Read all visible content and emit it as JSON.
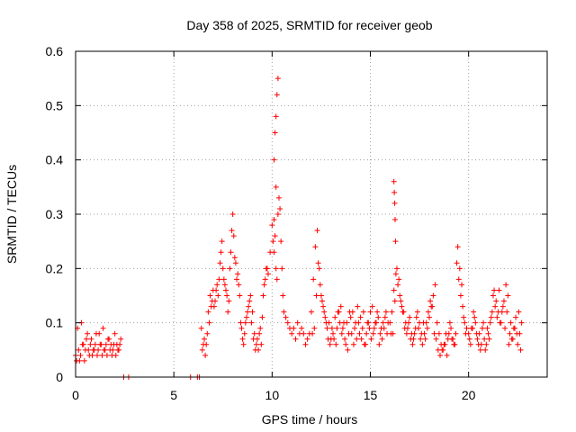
{
  "chart_data": {
    "type": "scatter",
    "title": "Day 358 of 2025, SRMTID for receiver geob",
    "xlabel": "GPS time / hours",
    "ylabel": "SRMTID / TECUs",
    "xlim": [
      0,
      24
    ],
    "ylim": [
      0,
      0.6
    ],
    "xticks": [
      0,
      5,
      10,
      15,
      20
    ],
    "xtick_labels": [
      "0",
      "5",
      "10",
      "15",
      "20"
    ],
    "yticks": [
      0,
      0.1,
      0.2,
      0.3,
      0.4,
      0.5,
      0.6
    ],
    "ytick_labels": [
      "0",
      "0.1",
      "0.2",
      "0.3",
      "0.4",
      "0.5",
      "0.6"
    ],
    "grid": true,
    "marker": "+",
    "colors": {
      "series": "#ff0000",
      "grid": "#a0a0a0",
      "axis": "#000000"
    },
    "series": [
      {
        "name": "SRMTID",
        "x": [
          0.0,
          0.1,
          0.2,
          0.3,
          0.4,
          0.5,
          0.6,
          0.7,
          0.8,
          0.9,
          1.0,
          1.1,
          1.2,
          1.3,
          1.4,
          1.5,
          1.6,
          1.7,
          1.8,
          1.9,
          2.0,
          2.1,
          2.2,
          2.3,
          0.05,
          0.15,
          0.25,
          0.35,
          0.45,
          0.55,
          0.65,
          0.75,
          0.85,
          0.95,
          1.05,
          1.15,
          1.25,
          1.35,
          1.45,
          1.55,
          1.65,
          1.75,
          1.85,
          1.95,
          2.05,
          2.15,
          2.25,
          2.45,
          2.7,
          5.85,
          6.2,
          6.3,
          6.4,
          6.5,
          6.6,
          6.7,
          6.8,
          6.9,
          7.0,
          7.1,
          7.2,
          7.3,
          7.4,
          7.5,
          7.6,
          7.7,
          7.8,
          7.9,
          8.0,
          8.1,
          8.2,
          8.3,
          8.4,
          8.5,
          8.6,
          8.7,
          8.8,
          8.9,
          9.0,
          9.1,
          9.2,
          9.3,
          9.4,
          9.5,
          9.6,
          9.7,
          9.8,
          9.9,
          6.45,
          6.55,
          6.65,
          6.75,
          6.85,
          6.95,
          7.05,
          7.15,
          7.25,
          7.35,
          7.45,
          7.55,
          7.65,
          7.75,
          7.85,
          7.95,
          8.05,
          8.15,
          8.25,
          8.35,
          8.45,
          8.55,
          8.65,
          8.75,
          8.85,
          8.95,
          9.05,
          9.15,
          9.25,
          9.35,
          9.45,
          9.55,
          9.65,
          9.75,
          10.0,
          10.05,
          10.1,
          10.15,
          10.2,
          10.25,
          10.3,
          10.35,
          10.4,
          10.45,
          10.5,
          10.55,
          10.6,
          10.7,
          10.8,
          10.9,
          11.0,
          11.1,
          11.2,
          11.3,
          11.4,
          11.5,
          11.6,
          11.7,
          11.8,
          11.9,
          10.1,
          10.15,
          10.2,
          10.25,
          10.3,
          10.2,
          10.1,
          12.0,
          12.1,
          12.2,
          12.3,
          12.4,
          12.5,
          12.6,
          12.7,
          12.8,
          12.9,
          13.0,
          13.1,
          13.2,
          13.3,
          13.4,
          13.5,
          13.6,
          13.7,
          13.8,
          13.9,
          14.0,
          14.1,
          14.2,
          14.3,
          14.4,
          14.5,
          14.6,
          14.7,
          14.8,
          14.9,
          15.0,
          15.1,
          15.2,
          15.3,
          15.4,
          15.5,
          15.6,
          15.7,
          15.8,
          15.9,
          12.05,
          12.15,
          12.25,
          12.35,
          12.45,
          12.55,
          12.65,
          12.75,
          12.85,
          12.95,
          13.05,
          13.15,
          13.25,
          13.35,
          13.45,
          13.55,
          13.65,
          13.75,
          13.85,
          13.95,
          14.05,
          14.15,
          14.25,
          14.35,
          14.45,
          14.55,
          14.65,
          14.75,
          14.85,
          14.95,
          15.05,
          15.15,
          15.25,
          15.35,
          15.45,
          15.55,
          15.65,
          15.75,
          15.85,
          16.0,
          16.1,
          16.15,
          16.2,
          16.25,
          16.3,
          16.4,
          16.5,
          16.6,
          16.7,
          16.8,
          16.9,
          17.0,
          17.1,
          17.2,
          17.3,
          17.4,
          17.5,
          17.6,
          17.7,
          17.8,
          17.9,
          18.0,
          18.1,
          18.2,
          18.3,
          18.4,
          18.5,
          18.6,
          18.7,
          18.8,
          18.9,
          19.0,
          19.1,
          19.2,
          19.3,
          19.4,
          19.5,
          19.6,
          19.7,
          19.8,
          19.9,
          16.2,
          16.22,
          16.24,
          16.26,
          16.28,
          16.05,
          16.35,
          16.45,
          16.55,
          16.65,
          16.75,
          16.85,
          16.95,
          17.05,
          17.15,
          17.25,
          17.35,
          17.45,
          17.55,
          17.65,
          17.75,
          17.85,
          17.95,
          18.05,
          18.15,
          18.25,
          18.35,
          18.45,
          18.55,
          18.65,
          18.75,
          18.85,
          18.95,
          19.05,
          19.15,
          19.25,
          19.35,
          19.45,
          19.55,
          19.65,
          19.75,
          19.85,
          20.0,
          20.1,
          20.2,
          20.3,
          20.4,
          20.5,
          20.6,
          20.7,
          20.8,
          20.9,
          21.0,
          21.1,
          21.2,
          21.3,
          21.4,
          21.5,
          21.6,
          21.7,
          21.8,
          21.9,
          22.0,
          22.1,
          22.2,
          22.3,
          22.4,
          22.5,
          22.6,
          22.7,
          20.05,
          20.15,
          20.25,
          20.35,
          20.45,
          20.55,
          20.65,
          20.75,
          20.85,
          20.95,
          21.05,
          21.15,
          21.25,
          21.35,
          21.45,
          21.55,
          21.65,
          21.75,
          21.85,
          21.95,
          22.05,
          22.15,
          22.25,
          22.35,
          22.45,
          22.55,
          22.65
        ],
        "y": [
          0.04,
          0.09,
          0.03,
          0.1,
          0.06,
          0.05,
          0.08,
          0.04,
          0.07,
          0.05,
          0.06,
          0.04,
          0.08,
          0.06,
          0.09,
          0.05,
          0.04,
          0.07,
          0.06,
          0.05,
          0.08,
          0.06,
          0.05,
          0.07,
          0.03,
          0.05,
          0.04,
          0.06,
          0.03,
          0.07,
          0.05,
          0.06,
          0.04,
          0.05,
          0.08,
          0.05,
          0.06,
          0.04,
          0.05,
          0.06,
          0.07,
          0.05,
          0.04,
          0.06,
          0.04,
          0.05,
          0.06,
          0.0,
          0.0,
          0.0,
          0.0,
          0.0,
          0.09,
          0.06,
          0.04,
          0.08,
          0.1,
          0.13,
          0.16,
          0.14,
          0.17,
          0.18,
          0.23,
          0.2,
          0.17,
          0.15,
          0.14,
          0.23,
          0.3,
          0.22,
          0.18,
          0.17,
          0.1,
          0.07,
          0.08,
          0.11,
          0.13,
          0.15,
          0.12,
          0.08,
          0.06,
          0.05,
          0.09,
          0.11,
          0.17,
          0.2,
          0.19,
          0.23,
          0.05,
          0.07,
          0.06,
          0.12,
          0.15,
          0.14,
          0.13,
          0.16,
          0.15,
          0.21,
          0.25,
          0.18,
          0.16,
          0.12,
          0.2,
          0.27,
          0.26,
          0.21,
          0.19,
          0.15,
          0.09,
          0.06,
          0.1,
          0.12,
          0.14,
          0.1,
          0.07,
          0.05,
          0.07,
          0.08,
          0.06,
          0.15,
          0.18,
          0.2,
          0.28,
          0.25,
          0.23,
          0.26,
          0.2,
          0.18,
          0.3,
          0.33,
          0.31,
          0.25,
          0.2,
          0.15,
          0.12,
          0.11,
          0.1,
          0.09,
          0.08,
          0.09,
          0.07,
          0.1,
          0.08,
          0.09,
          0.08,
          0.06,
          0.07,
          0.08,
          0.4,
          0.45,
          0.48,
          0.52,
          0.55,
          0.35,
          0.29,
          0.12,
          0.18,
          0.24,
          0.27,
          0.2,
          0.15,
          0.13,
          0.11,
          0.09,
          0.1,
          0.07,
          0.08,
          0.11,
          0.09,
          0.12,
          0.13,
          0.09,
          0.07,
          0.1,
          0.08,
          0.11,
          0.12,
          0.09,
          0.07,
          0.1,
          0.11,
          0.09,
          0.06,
          0.08,
          0.1,
          0.12,
          0.13,
          0.09,
          0.1,
          0.11,
          0.08,
          0.07,
          0.09,
          0.12,
          0.1,
          0.08,
          0.09,
          0.15,
          0.21,
          0.17,
          0.14,
          0.12,
          0.1,
          0.07,
          0.06,
          0.09,
          0.07,
          0.06,
          0.12,
          0.1,
          0.08,
          0.1,
          0.06,
          0.05,
          0.12,
          0.08,
          0.06,
          0.1,
          0.13,
          0.08,
          0.07,
          0.12,
          0.06,
          0.1,
          0.09,
          0.07,
          0.08,
          0.1,
          0.12,
          0.06,
          0.09,
          0.1,
          0.11,
          0.08,
          0.1,
          0.12,
          0.08,
          0.16,
          0.14,
          0.19,
          0.17,
          0.15,
          0.13,
          0.12,
          0.1,
          0.09,
          0.11,
          0.08,
          0.07,
          0.09,
          0.12,
          0.1,
          0.08,
          0.1,
          0.07,
          0.09,
          0.11,
          0.13,
          0.15,
          0.17,
          0.1,
          0.08,
          0.06,
          0.05,
          0.06,
          0.04,
          0.08,
          0.09,
          0.07,
          0.06,
          0.21,
          0.18,
          0.15,
          0.13,
          0.1,
          0.09,
          0.36,
          0.34,
          0.32,
          0.29,
          0.25,
          0.08,
          0.2,
          0.18,
          0.14,
          0.12,
          0.09,
          0.08,
          0.1,
          0.07,
          0.06,
          0.08,
          0.11,
          0.09,
          0.07,
          0.06,
          0.08,
          0.1,
          0.12,
          0.14,
          0.13,
          0.08,
          0.07,
          0.05,
          0.04,
          0.05,
          0.06,
          0.08,
          0.07,
          0.1,
          0.07,
          0.06,
          0.08,
          0.24,
          0.2,
          0.17,
          0.11,
          0.08,
          0.08,
          0.06,
          0.09,
          0.11,
          0.08,
          0.06,
          0.05,
          0.09,
          0.07,
          0.06,
          0.08,
          0.1,
          0.12,
          0.16,
          0.14,
          0.12,
          0.1,
          0.12,
          0.14,
          0.17,
          0.15,
          0.08,
          0.07,
          0.09,
          0.11,
          0.06,
          0.08,
          0.1,
          0.07,
          0.09,
          0.12,
          0.1,
          0.07,
          0.08,
          0.06,
          0.1,
          0.05,
          0.09,
          0.07,
          0.11,
          0.15,
          0.13,
          0.11,
          0.16,
          0.1,
          0.13,
          0.09,
          0.12,
          0.06,
          0.1,
          0.07,
          0.09,
          0.08,
          0.12,
          0.05
        ]
      }
    ]
  }
}
